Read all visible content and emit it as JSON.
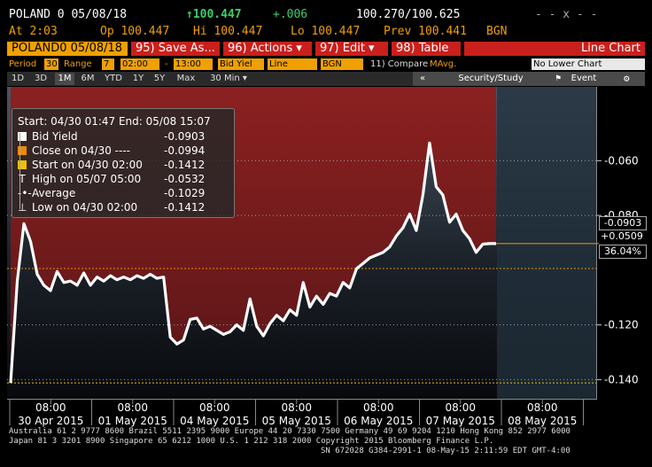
{
  "header": {
    "security": "POLAND 0 05/08/18",
    "last_price": "↑100.447",
    "change": "+.006",
    "bid_ask": "100.270/100.625",
    "window_controls": "- - x - -",
    "at": "At 2:03",
    "open": "Op 100.447",
    "high": "Hi 100.447",
    "low": "Lo 100.447",
    "prev": "Prev 100.441",
    "source": "BGN"
  },
  "toolbar": {
    "security_field": "POLAND0 05/08/18",
    "save_as": "95) Save As...",
    "actions": "96) Actions ▾",
    "edit": "97) Edit ▾",
    "table": "98) Table",
    "line_chart": "Line Chart"
  },
  "settings": {
    "period_label": "Period",
    "period_value": "30",
    "range_label": "Range",
    "range_value": "7",
    "time_start": "02:00",
    "time_sep": "-",
    "time_end": "13:00",
    "field": "Bid Yiel",
    "style": "Line",
    "source": "BGN",
    "compare": "11) Compare",
    "mavg": "MAvg.",
    "lower_chart": "No Lower Chart"
  },
  "tabs": [
    "1D",
    "3D",
    "1M",
    "6M",
    "YTD",
    "1Y",
    "5Y",
    "Max",
    "30 Min ▾"
  ],
  "active_tab": "1M",
  "right_toolbar": {
    "collapse": "«",
    "security_study": "Security/Study",
    "event": "Event"
  },
  "legend": {
    "range": "Start: 04/30 01:47 End: 05/08 15:07",
    "rows": [
      {
        "label": "Bid Yield",
        "value": "-0.0903",
        "color": "#ffffff"
      },
      {
        "label": "Close on 04/30 ----",
        "value": "-0.0994",
        "color": "#f08a00"
      },
      {
        "label": "Start on 04/30 02:00",
        "value": "-0.1412",
        "color": "#f0c000"
      },
      {
        "label": "High on 05/07 05:00",
        "value": "-0.0532",
        "color": "#ffffff"
      },
      {
        "label": "Average",
        "value": "-0.1029",
        "color": "#ffffff"
      },
      {
        "label": "Low on 04/30 02:00",
        "value": "-0.1412",
        "color": "#ffffff"
      }
    ]
  },
  "right_labels": {
    "last": "-0.0903",
    "change": "+0.0509",
    "pct": "36.04%"
  },
  "chart_data": {
    "type": "line",
    "ylim": [
      -0.147,
      -0.033
    ],
    "yticks": [
      -0.06,
      -0.08,
      -0.12,
      -0.14
    ],
    "ytick_labels": [
      "-0.060",
      "-0.080",
      "-0.120",
      "-0.140"
    ],
    "reference_lines": [
      {
        "name": "Close on 04/30",
        "value": -0.0994,
        "color": "#f08a00"
      },
      {
        "name": "Start on 04/30 02:00",
        "value": -0.1412,
        "color": "#f0c000"
      }
    ],
    "x_time_labels": [
      "08:00",
      "08:00",
      "08:00",
      "08:00",
      "08:00",
      "08:00",
      "08:00"
    ],
    "x_date_labels": [
      "30 Apr 2015",
      "01 May 2015",
      "04 May 2015",
      "05 May 2015",
      "06 May 2015",
      "07 May 2015",
      "08 May 2015"
    ],
    "series": [
      {
        "values": [
          -0.1412,
          -0.104,
          -0.083,
          -0.0895,
          -0.1015,
          -0.1055,
          -0.1075,
          -0.1005,
          -0.1045,
          -0.104,
          -0.1055,
          -0.101,
          -0.1055,
          -0.1025,
          -0.104,
          -0.102,
          -0.1035,
          -0.1025,
          -0.1035,
          -0.102,
          -0.103,
          -0.1015,
          -0.103,
          -0.1025,
          -0.1245,
          -0.127,
          -0.1255,
          -0.118,
          -0.1175,
          -0.1215,
          -0.1205,
          -0.122,
          -0.1235,
          -0.1225,
          -0.12,
          -0.122,
          -0.1105,
          -0.1205,
          -0.124,
          -0.1195,
          -0.1165,
          -0.1185,
          -0.1145,
          -0.1165,
          -0.1045,
          -0.1135,
          -0.1095,
          -0.1125,
          -0.1085,
          -0.1095,
          -0.1045,
          -0.1065,
          -0.0995,
          -0.0975,
          -0.0955,
          -0.0945,
          -0.0935,
          -0.0915,
          -0.0875,
          -0.0845,
          -0.0795,
          -0.0855,
          -0.0725,
          -0.0535,
          -0.0695,
          -0.0725,
          -0.0825,
          -0.0795,
          -0.0855,
          -0.0885,
          -0.0935,
          -0.0905,
          -0.0903,
          -0.0903
        ]
      }
    ]
  },
  "footer": {
    "line1": "Australia 61 2 9777 8600 Brazil 5511 2395 9000 Europe 44 20 7330 7500 Germany 49 69 9204 1210 Hong Kong 852 2977 6000",
    "line2": "Japan 81 3 3201 8900          Singapore 65 6212 1000          U.S. 1 212 318 2000          Copyright 2015 Bloomberg Finance L.P.",
    "line3": "SN 672028 G384-2991-1 08-May-15  2:11:59 EDT  GMT-4:00"
  }
}
